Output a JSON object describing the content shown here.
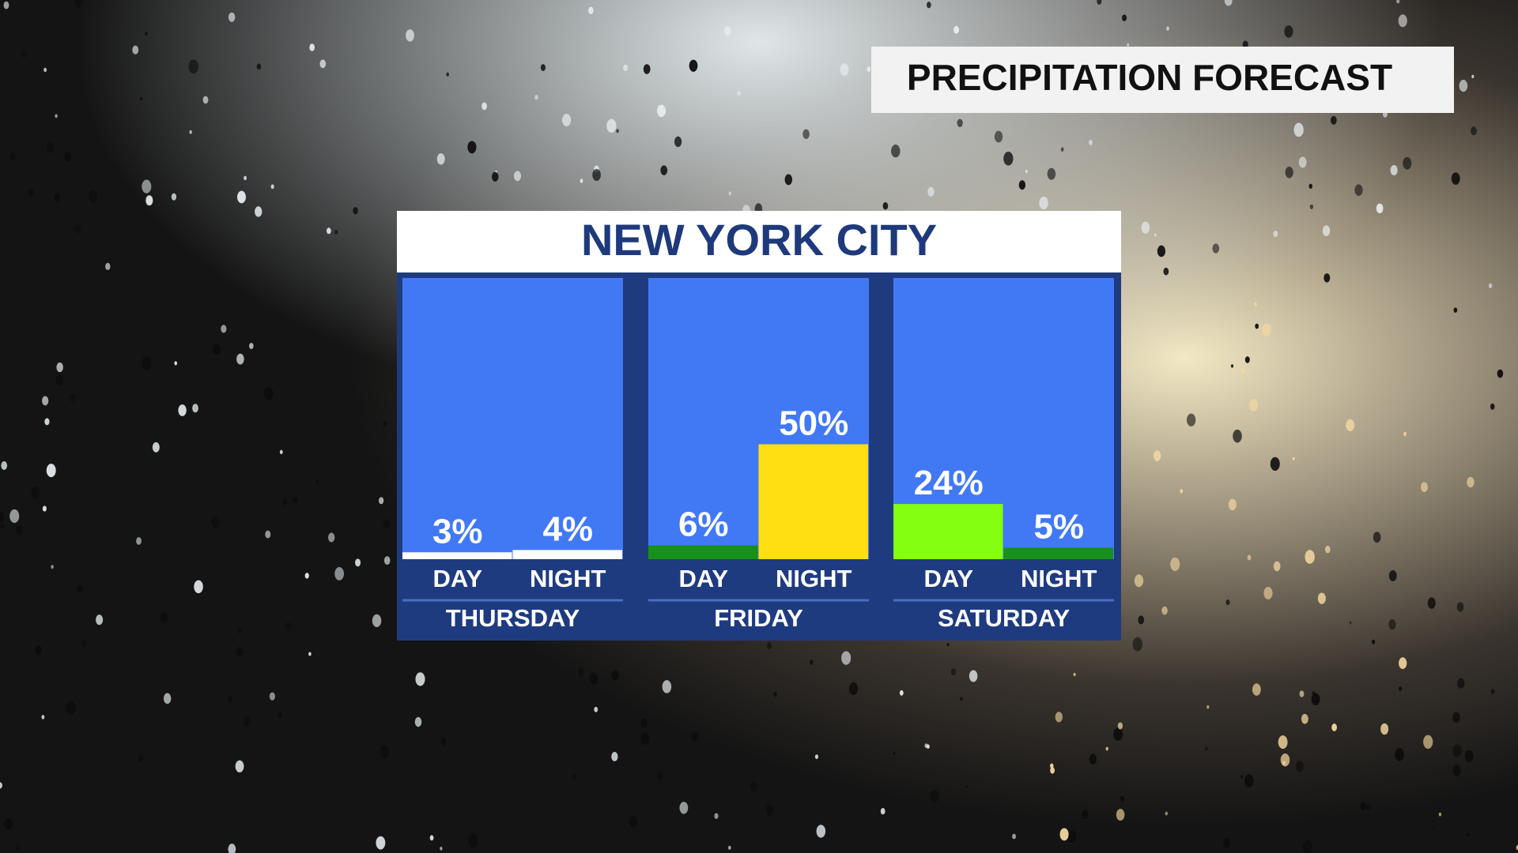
{
  "chart_data": {
    "type": "bar",
    "label": "PRECIPITATION FORECAST",
    "title": "NEW YORK CITY",
    "ylim": [
      0,
      100
    ],
    "groups": [
      {
        "name": "THURSDAY",
        "categories": [
          "DAY",
          "NIGHT"
        ],
        "values": [
          3,
          4
        ],
        "value_labels": [
          "3%",
          "4%"
        ],
        "colors": [
          "#ffffff",
          "#ffffff"
        ]
      },
      {
        "name": "FRIDAY",
        "categories": [
          "DAY",
          "NIGHT"
        ],
        "values": [
          6,
          50
        ],
        "value_labels": [
          "6%",
          "50%"
        ],
        "colors": [
          "#17901c",
          "#ffdf12"
        ]
      },
      {
        "name": "SATURDAY",
        "categories": [
          "DAY",
          "NIGHT"
        ],
        "values": [
          24,
          5
        ],
        "value_labels": [
          "24%",
          "5%"
        ],
        "colors": [
          "#84ff12",
          "#17901c"
        ]
      }
    ]
  }
}
